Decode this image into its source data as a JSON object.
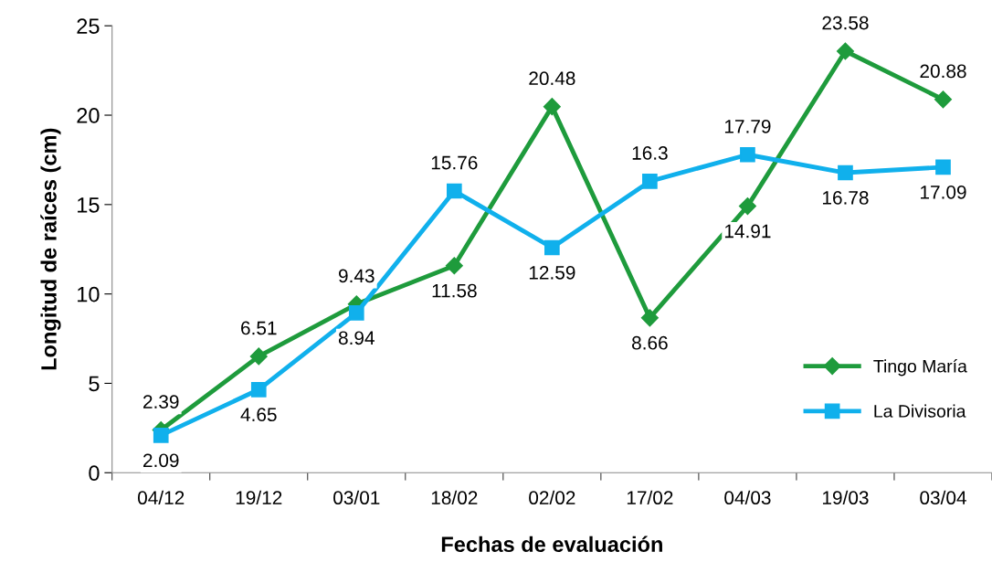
{
  "chart_data": {
    "type": "line",
    "xlabel": "Fechas de evaluación",
    "ylabel": "Longitud de raíces (cm)",
    "categories": [
      "04/12",
      "19/12",
      "03/01",
      "18/02",
      "02/02",
      "17/02",
      "04/03",
      "19/03",
      "03/04"
    ],
    "series": [
      {
        "name": "Tingo María",
        "color": "#1e9b3c",
        "marker": "diamond",
        "values": [
          2.39,
          6.51,
          9.43,
          11.58,
          20.48,
          8.66,
          14.91,
          23.58,
          20.88
        ]
      },
      {
        "name": "La Divisoria",
        "color": "#10b0ec",
        "marker": "square",
        "values": [
          2.09,
          4.65,
          8.94,
          15.76,
          12.59,
          16.3,
          17.79,
          16.78,
          17.09
        ]
      }
    ],
    "ylim": [
      0,
      25
    ],
    "yticks": [
      0,
      5,
      10,
      15,
      20,
      25
    ],
    "grid": false,
    "legend": "bottom right",
    "data_labels": true,
    "line_style": "solid"
  }
}
